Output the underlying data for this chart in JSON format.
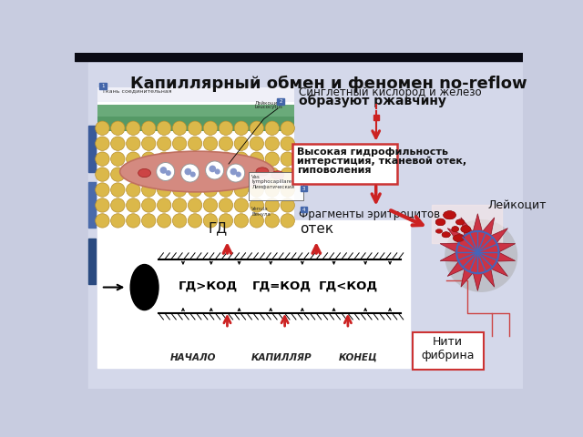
{
  "title": "Капиллярный обмен и феномен no-reflow",
  "bg_color": "#c8cce0",
  "slide_bg": "#dde0ee",
  "text_title_color": "#1a1a1a",
  "annotation1_line1": "Синглетный кислород и железо",
  "annotation1_line2_bold": "образуют ржавчину",
  "annotation2_line1": "Высокая гидрофильность",
  "annotation2_line2": "интерстиция, тканевой отек,",
  "annotation2_line3": "гиповоления",
  "annotation3": "Фрагменты эритроцитов",
  "label_gd": "ГД",
  "label_otek": "отек",
  "label_leikocit": "Лейкоцит",
  "label_niti": "Нити\nфибрина",
  "capillary_labels": [
    "ГД>КОД",
    "ГД=КОД",
    "ГД<КОД"
  ],
  "capillary_sublabels": [
    "НАЧАЛО",
    "КАПИЛЛЯР",
    "КОНЕЦ"
  ]
}
